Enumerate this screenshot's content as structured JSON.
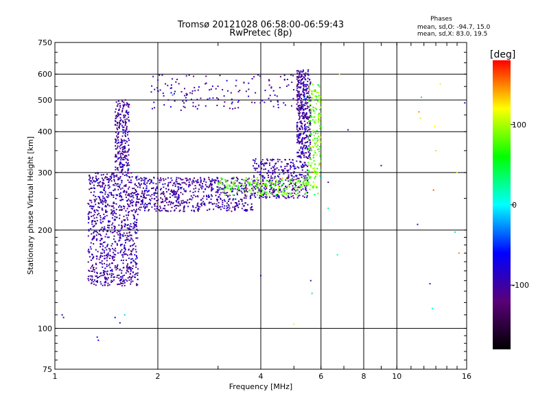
{
  "chart_data": {
    "type": "scatter",
    "title": "Tromsø 20121028 06:58:00-06:59:43",
    "subtitle": "RwPretec (8p)",
    "xlabel": "Frequency [MHz]",
    "ylabel": "Stationary phase Virtual Height [km]",
    "x_scale": "log",
    "y_scale": "log",
    "xlim": [
      1,
      16
    ],
    "ylim": [
      75,
      750
    ],
    "x_ticks": [
      1,
      2,
      4,
      6,
      8,
      10,
      16
    ],
    "x_tick_labels": [
      "1",
      "2",
      "4",
      "6",
      "8",
      "10",
      "16"
    ],
    "x_grid": [
      2,
      4,
      6,
      8,
      10
    ],
    "y_ticks": [
      75,
      100,
      200,
      300,
      400,
      500,
      600,
      750
    ],
    "y_tick_labels": [
      "75",
      "100",
      "200",
      "300",
      "400",
      "500",
      "600",
      "750"
    ],
    "y_grid": [
      100,
      200,
      300,
      400,
      500,
      600
    ],
    "grid": true,
    "phases_box": {
      "title": "Phases",
      "line_o": "mean, sd,O: -94.7, 15.0",
      "line_x": "mean, sd,X:  83.0, 19.5"
    },
    "colorbar": {
      "label": "[deg]",
      "range": [
        -180,
        180
      ],
      "ticks": [
        100,
        0,
        -100
      ],
      "tick_labels": [
        "100",
        "0",
        "-100"
      ],
      "colormap": [
        "#000000",
        "#5a0078",
        "#0000ff",
        "#00ffff",
        "#00ff00",
        "#ffff00",
        "#ff0000"
      ]
    },
    "clusters": [
      {
        "name": "O-mode F-trace low band",
        "phase": -100,
        "f_range": [
          1.25,
          1.75
        ],
        "h_range": [
          135,
          300
        ],
        "count": 900
      },
      {
        "name": "O-mode cusp",
        "phase": -100,
        "f_range": [
          1.5,
          1.65
        ],
        "h_range": [
          300,
          500
        ],
        "count": 250
      },
      {
        "name": "O-mode F trace",
        "phase": -100,
        "f_range": [
          1.75,
          3.8
        ],
        "h_range": [
          228,
          290
        ],
        "count": 650
      },
      {
        "name": "O-mode near critical",
        "phase": -100,
        "f_range": [
          3.8,
          5.5
        ],
        "h_range": [
          250,
          330
        ],
        "count": 350
      },
      {
        "name": "O-mode critical rise",
        "phase": -100,
        "f_range": [
          5.1,
          5.6
        ],
        "h_range": [
          330,
          620
        ],
        "count": 420
      },
      {
        "name": "O-mode upper trace",
        "phase": -100,
        "f_range": [
          1.9,
          5.2
        ],
        "h_range": [
          465,
          600
        ],
        "count": 150
      },
      {
        "name": "X-mode trace",
        "phase": 83,
        "f_range": [
          3.0,
          5.9
        ],
        "h_range": [
          255,
          290
        ],
        "count": 230
      },
      {
        "name": "X-mode critical",
        "phase": 83,
        "f_range": [
          5.5,
          6.0
        ],
        "h_range": [
          290,
          560
        ],
        "count": 170
      }
    ],
    "isolated_points": [
      {
        "x": 1.05,
        "y": 110,
        "phase": -100
      },
      {
        "x": 1.06,
        "y": 108,
        "phase": -100
      },
      {
        "x": 1.33,
        "y": 94,
        "phase": -100
      },
      {
        "x": 1.34,
        "y": 92,
        "phase": -60
      },
      {
        "x": 1.5,
        "y": 108,
        "phase": -60
      },
      {
        "x": 1.55,
        "y": 104,
        "phase": -100
      },
      {
        "x": 1.6,
        "y": 110,
        "phase": -10
      },
      {
        "x": 4.0,
        "y": 145,
        "phase": -70
      },
      {
        "x": 5.0,
        "y": 103,
        "phase": 110
      },
      {
        "x": 5.6,
        "y": 140,
        "phase": -100
      },
      {
        "x": 5.65,
        "y": 128,
        "phase": 40
      },
      {
        "x": 6.3,
        "y": 280,
        "phase": -100
      },
      {
        "x": 6.3,
        "y": 233,
        "phase": 30
      },
      {
        "x": 6.7,
        "y": 168,
        "phase": 20
      },
      {
        "x": 6.8,
        "y": 600,
        "phase": 110
      },
      {
        "x": 7.2,
        "y": 405,
        "phase": -100
      },
      {
        "x": 9.0,
        "y": 315,
        "phase": -100
      },
      {
        "x": 11.5,
        "y": 208,
        "phase": -100
      },
      {
        "x": 11.6,
        "y": 460,
        "phase": 150
      },
      {
        "x": 11.7,
        "y": 440,
        "phase": 110
      },
      {
        "x": 11.8,
        "y": 510,
        "phase": 50
      },
      {
        "x": 12.5,
        "y": 137,
        "phase": -100
      },
      {
        "x": 12.7,
        "y": 115,
        "phase": 10
      },
      {
        "x": 12.8,
        "y": 265,
        "phase": 160
      },
      {
        "x": 12.9,
        "y": 415,
        "phase": 120
      },
      {
        "x": 13.0,
        "y": 350,
        "phase": 100
      },
      {
        "x": 13.4,
        "y": 560,
        "phase": 110
      },
      {
        "x": 14.8,
        "y": 197,
        "phase": 30
      },
      {
        "x": 15.0,
        "y": 300,
        "phase": 110
      },
      {
        "x": 15.2,
        "y": 170,
        "phase": 150
      },
      {
        "x": 15.8,
        "y": 490,
        "phase": -90
      }
    ]
  }
}
